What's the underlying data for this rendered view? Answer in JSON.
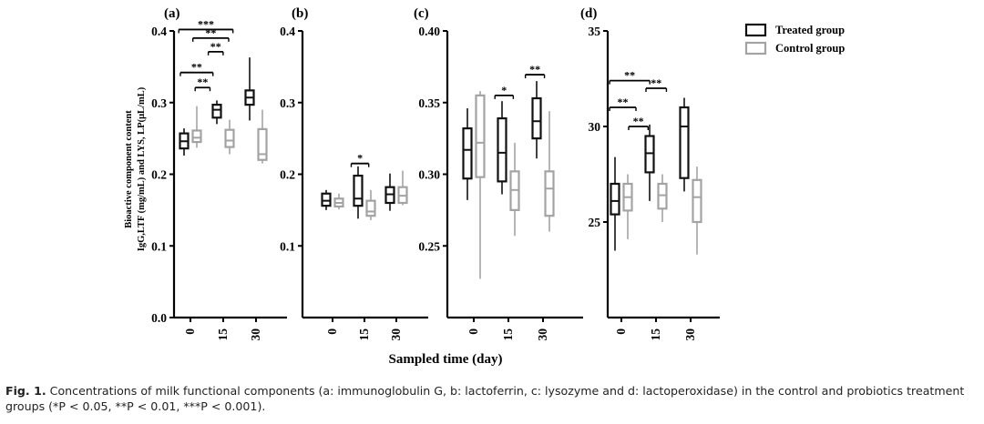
{
  "figure": {
    "legend": {
      "treated_label": "Treated group",
      "control_label": "Control group"
    },
    "ylabel_line1": "Bioactive component content",
    "ylabel_line2": "IgG,LTF (mg/mL) and LYS, LP(μL/mL)",
    "xlabel": "Sampled time (day)"
  },
  "colors": {
    "treated": "#111111",
    "control": "#a3a3a3",
    "axis": "#000000"
  },
  "caption": {
    "label": "Fig. 1.",
    "text": "Concentrations of milk functional components (a: immunoglobulin G, b: lactoferrin, c: lysozyme and d: lactoperoxidase) in the control and probiotics treatment groups (*P < 0.05, **P < 0.01, ***P < 0.001)."
  },
  "chart_data": [
    {
      "type": "box",
      "panel": "(a)",
      "categories": [
        "0",
        "15",
        "30"
      ],
      "ylim": [
        0.0,
        0.4
      ],
      "yticks": [
        "0.0",
        "0.1",
        "0.2",
        "0.3",
        "0.4"
      ],
      "series": [
        {
          "name": "Treated group",
          "boxes": [
            {
              "min": 0.226,
              "q1": 0.236,
              "median": 0.246,
              "q3": 0.257,
              "max": 0.264
            },
            {
              "min": 0.27,
              "q1": 0.279,
              "median": 0.29,
              "q3": 0.297,
              "max": 0.303
            },
            {
              "min": 0.275,
              "q1": 0.297,
              "median": 0.307,
              "q3": 0.317,
              "max": 0.363
            }
          ]
        },
        {
          "name": "Control group",
          "boxes": [
            {
              "min": 0.237,
              "q1": 0.245,
              "median": 0.251,
              "q3": 0.261,
              "max": 0.295
            },
            {
              "min": 0.228,
              "q1": 0.238,
              "median": 0.247,
              "q3": 0.262,
              "max": 0.276
            },
            {
              "min": 0.215,
              "q1": 0.22,
              "median": 0.228,
              "q3": 0.263,
              "max": 0.29
            }
          ]
        }
      ],
      "significance": [
        {
          "label": "**",
          "from_x": 0.0,
          "to_x": 0.77,
          "y": 0.342
        },
        {
          "label": "**",
          "from_x": 0.45,
          "to_x": 0.68,
          "y": 0.321
        },
        {
          "label": "***",
          "from_x": -0.05,
          "to_x": 1.38,
          "y": 0.402
        },
        {
          "label": "**",
          "from_x": 0.38,
          "to_x": 1.25,
          "y": 0.39
        },
        {
          "label": "**",
          "from_x": 0.85,
          "to_x": 1.08,
          "y": 0.371
        }
      ]
    },
    {
      "type": "box",
      "panel": "(b)",
      "categories": [
        "0",
        "15",
        "30"
      ],
      "ylim": [
        0.0,
        0.4
      ],
      "yticks": [
        "0.1",
        "0.2",
        "0.3",
        "0.4"
      ],
      "series": [
        {
          "name": "Treated group",
          "boxes": [
            {
              "min": 0.15,
              "q1": 0.156,
              "median": 0.163,
              "q3": 0.173,
              "max": 0.178
            },
            {
              "min": 0.138,
              "q1": 0.156,
              "median": 0.166,
              "q3": 0.198,
              "max": 0.211
            },
            {
              "min": 0.149,
              "q1": 0.16,
              "median": 0.172,
              "q3": 0.182,
              "max": 0.201
            }
          ]
        },
        {
          "name": "Control group",
          "boxes": [
            {
              "min": 0.151,
              "q1": 0.155,
              "median": 0.16,
              "q3": 0.166,
              "max": 0.173
            },
            {
              "min": 0.136,
              "q1": 0.142,
              "median": 0.148,
              "q3": 0.163,
              "max": 0.178
            },
            {
              "min": 0.157,
              "q1": 0.16,
              "median": 0.17,
              "q3": 0.182,
              "max": 0.205
            }
          ]
        }
      ],
      "significance": [
        {
          "label": "*",
          "from_x": 0.9,
          "to_x": 1.22,
          "y": 0.215
        }
      ]
    },
    {
      "type": "box",
      "panel": "(c)",
      "categories": [
        "0",
        "15",
        "30"
      ],
      "ylim": [
        0.2,
        0.4
      ],
      "yticks": [
        "0.25",
        "0.30",
        "0.35",
        "0.40"
      ],
      "series": [
        {
          "name": "Treated group",
          "boxes": [
            {
              "min": 0.282,
              "q1": 0.297,
              "median": 0.317,
              "q3": 0.332,
              "max": 0.346
            },
            {
              "min": 0.286,
              "q1": 0.295,
              "median": 0.315,
              "q3": 0.339,
              "max": 0.351
            },
            {
              "min": 0.311,
              "q1": 0.325,
              "median": 0.337,
              "q3": 0.353,
              "max": 0.365
            }
          ]
        },
        {
          "name": "Control group",
          "boxes": [
            {
              "min": 0.227,
              "q1": 0.298,
              "median": 0.322,
              "q3": 0.355,
              "max": 0.358
            },
            {
              "min": 0.257,
              "q1": 0.275,
              "median": 0.289,
              "q3": 0.302,
              "max": 0.322
            },
            {
              "min": 0.26,
              "q1": 0.271,
              "median": 0.29,
              "q3": 0.302,
              "max": 0.344
            }
          ]
        }
      ],
      "significance": [
        {
          "label": "*",
          "from_x": 0.9,
          "to_x": 1.22,
          "y": 0.355
        },
        {
          "label": "**",
          "from_x": 1.78,
          "to_x": 2.12,
          "y": 0.3695
        }
      ]
    },
    {
      "type": "box",
      "panel": "(d)",
      "categories": [
        "0",
        "15",
        "30"
      ],
      "ylim": [
        20,
        35
      ],
      "yticks": [
        "25",
        "30",
        "35"
      ],
      "series": [
        {
          "name": "Treated group",
          "boxes": [
            {
              "min": 23.5,
              "q1": 25.4,
              "median": 26.1,
              "q3": 27.0,
              "max": 28.4
            },
            {
              "min": 26.1,
              "q1": 27.6,
              "median": 28.6,
              "q3": 29.5,
              "max": 30.1
            },
            {
              "min": 26.6,
              "q1": 27.3,
              "median": 30.0,
              "q3": 31.0,
              "max": 31.5
            }
          ]
        },
        {
          "name": "Control group",
          "boxes": [
            {
              "min": 24.1,
              "q1": 25.6,
              "median": 26.3,
              "q3": 27.0,
              "max": 27.5
            },
            {
              "min": 25.0,
              "q1": 25.7,
              "median": 26.4,
              "q3": 27.0,
              "max": 27.5
            },
            {
              "min": 23.3,
              "q1": 25.0,
              "median": 26.3,
              "q3": 27.2,
              "max": 27.9
            }
          ]
        }
      ],
      "significance": [
        {
          "label": "**",
          "from_x": -0.05,
          "to_x": 0.9,
          "y": 32.4
        },
        {
          "label": "**",
          "from_x": -0.05,
          "to_x": 0.5,
          "y": 31.0
        },
        {
          "label": "**",
          "from_x": 0.5,
          "to_x": 0.85,
          "y": 30.0
        },
        {
          "label": "**",
          "from_x": 1.0,
          "to_x": 1.38,
          "y": 32.0
        }
      ]
    }
  ]
}
